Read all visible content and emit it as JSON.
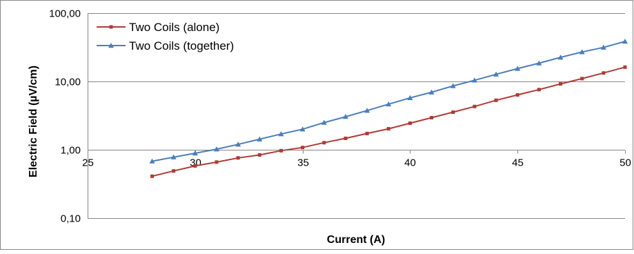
{
  "chart_data": {
    "type": "line",
    "title": "",
    "xlabel": "Current (A)",
    "ylabel": "Electric Field (µV/cm)",
    "x_axis": {
      "min": 25,
      "max": 50,
      "ticks": [
        25,
        30,
        35,
        40,
        45,
        50
      ],
      "tick_labels": [
        "25",
        "30",
        "35",
        "40",
        "45",
        "50"
      ]
    },
    "y_axis": {
      "scale": "log",
      "min": 0.1,
      "max": 100,
      "ticks": [
        0.1,
        1,
        10,
        100
      ],
      "tick_labels": [
        "0,10",
        "1,00",
        "10,00",
        "100,00"
      ]
    },
    "grid": {
      "horizontal": true,
      "vertical": false
    },
    "legend": {
      "position": "top-left"
    },
    "x": [
      28,
      29,
      30,
      31,
      32,
      33,
      34,
      35,
      36,
      37,
      38,
      39,
      40,
      41,
      42,
      43,
      44,
      45,
      46,
      47,
      48,
      49,
      50
    ],
    "series": [
      {
        "name": "Two Coils (alone)",
        "color": "#b03a35",
        "marker": "square",
        "values": [
          0.41,
          0.49,
          0.58,
          0.66,
          0.76,
          0.84,
          0.97,
          1.08,
          1.27,
          1.47,
          1.73,
          2.03,
          2.45,
          2.95,
          3.55,
          4.3,
          5.3,
          6.35,
          7.6,
          9.2,
          11.0,
          13.3,
          16.2
        ]
      },
      {
        "name": "Two Coils (together)",
        "color": "#4a7ebb",
        "marker": "triangle",
        "values": [
          0.68,
          0.78,
          0.89,
          1.02,
          1.2,
          1.43,
          1.7,
          2.0,
          2.5,
          3.05,
          3.75,
          4.65,
          5.75,
          6.95,
          8.6,
          10.4,
          12.7,
          15.4,
          18.5,
          22.5,
          27.0,
          31.5,
          38.5
        ]
      }
    ]
  }
}
